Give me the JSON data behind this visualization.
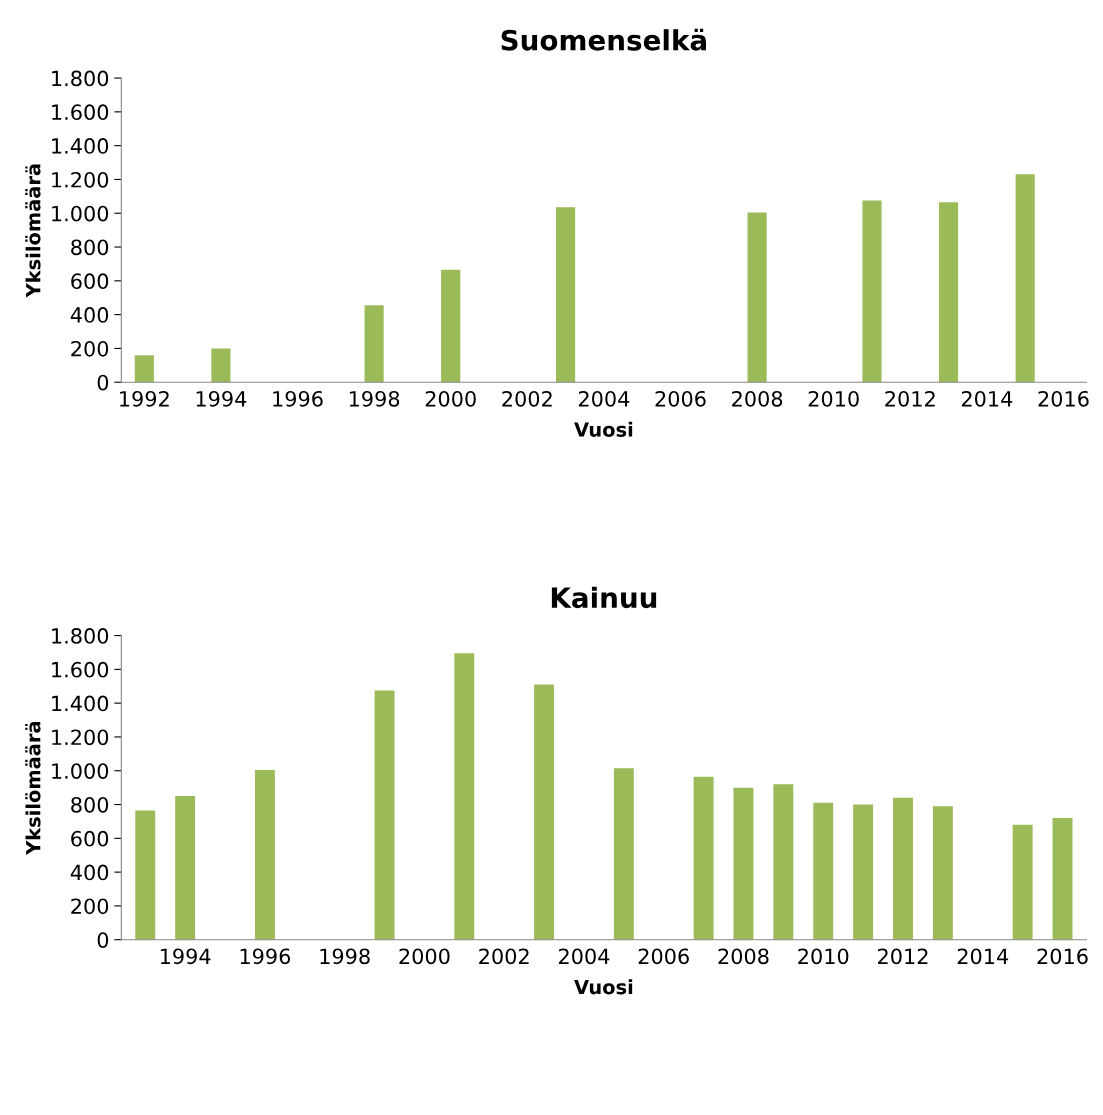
{
  "chart_data": [
    {
      "type": "bar",
      "title": "Suomenselkä",
      "xlabel": "Vuosi",
      "ylabel": "Yksilömäärä",
      "categories": [
        "1992",
        null,
        "1994",
        null,
        "1996",
        null,
        "1998",
        null,
        "2000",
        null,
        "2002",
        null,
        "2004",
        null,
        "2006",
        null,
        "2008",
        null,
        "2010",
        null,
        "2012",
        null,
        "2014",
        null,
        "2016"
      ],
      "values": [
        160,
        null,
        200,
        null,
        null,
        null,
        455,
        null,
        665,
        null,
        null,
        1035,
        null,
        null,
        null,
        null,
        1005,
        null,
        null,
        1075,
        null,
        1065,
        null,
        1230,
        null
      ],
      "color": "#9bbb59",
      "ylim": [
        0,
        1800
      ],
      "yticks": [
        0,
        200,
        400,
        600,
        800,
        {
          "value": 1000,
          "label": "1.000"
        },
        {
          "value": 1200,
          "label": "1.200"
        },
        {
          "value": 1400,
          "label": "1.400"
        },
        {
          "value": 1600,
          "label": "1.600"
        },
        {
          "value": 1800,
          "label": "1.800"
        }
      ],
      "grid": false,
      "legend": false
    },
    {
      "type": "bar",
      "title": "Kainuu",
      "xlabel": "Vuosi",
      "ylabel": "Yksilömäärä",
      "categories": [
        null,
        "1994",
        null,
        "1996",
        null,
        "1998",
        null,
        "2000",
        null,
        "2002",
        null,
        "2004",
        null,
        "2006",
        null,
        "2008",
        null,
        "2010",
        null,
        "2012",
        null,
        "2014",
        null,
        "2016"
      ],
      "values": [
        765,
        850,
        null,
        1005,
        null,
        null,
        1475,
        null,
        1695,
        null,
        1510,
        null,
        1015,
        null,
        965,
        900,
        920,
        810,
        800,
        840,
        790,
        null,
        680,
        720
      ],
      "color": "#9bbb59",
      "ylim": [
        0,
        1800
      ],
      "yticks": [
        0,
        200,
        400,
        600,
        800,
        {
          "value": 1000,
          "label": "1.000"
        },
        {
          "value": 1200,
          "label": "1.200"
        },
        {
          "value": 1400,
          "label": "1.400"
        },
        {
          "value": 1600,
          "label": "1.600"
        },
        {
          "value": 1800,
          "label": "1.800"
        }
      ],
      "grid": false,
      "legend": false
    }
  ]
}
